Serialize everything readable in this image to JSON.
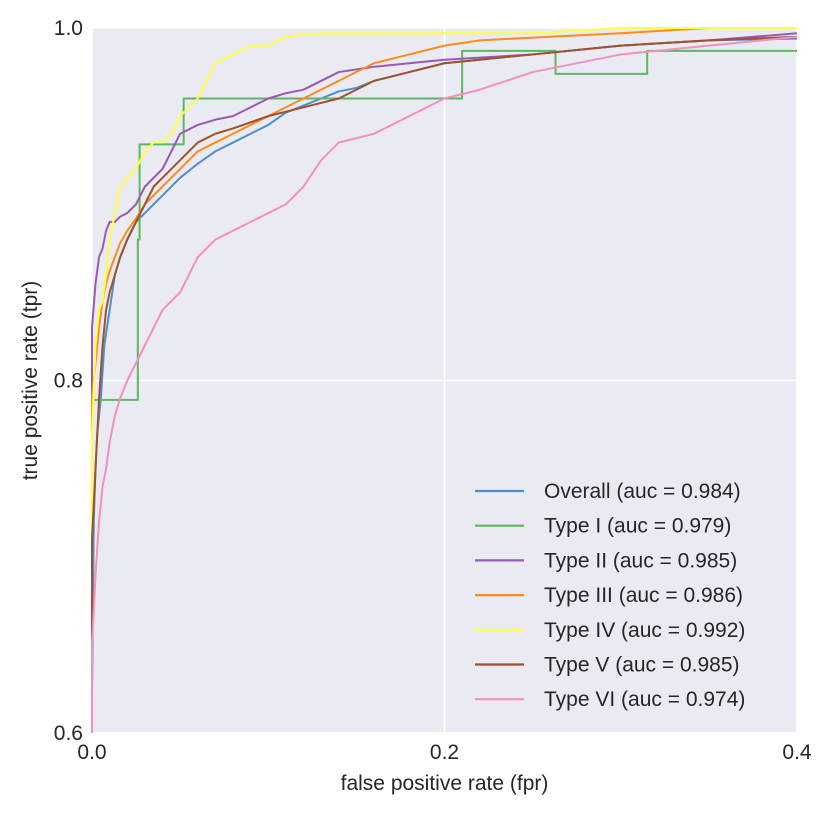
{
  "chart_data": {
    "type": "line",
    "title": "",
    "xlabel": "false positive rate (fpr)",
    "ylabel": "true positive rate (tpr)",
    "xlim": [
      0.0,
      0.4
    ],
    "ylim": [
      0.6,
      1.0
    ],
    "xticks": [
      0.0,
      0.2,
      0.4
    ],
    "xtick_labels": [
      "0.0",
      "0.2",
      "0.4"
    ],
    "yticks": [
      0.6,
      0.8,
      1.0
    ],
    "ytick_labels": [
      "0.6",
      "0.8",
      "1.0"
    ],
    "grid": true,
    "legend_position": "bottom-right",
    "series": [
      {
        "name": "Overall (auc = 0.984)",
        "color": "#4c8fd0",
        "x": [
          0.0,
          0.001,
          0.002,
          0.003,
          0.005,
          0.007,
          0.01,
          0.013,
          0.016,
          0.02,
          0.025,
          0.03,
          0.035,
          0.04,
          0.05,
          0.06,
          0.07,
          0.08,
          0.09,
          0.1,
          0.11,
          0.12,
          0.13,
          0.14,
          0.15,
          0.16,
          0.18,
          0.2,
          0.25,
          0.3,
          0.35,
          0.4
        ],
        "y": [
          0.62,
          0.72,
          0.75,
          0.77,
          0.79,
          0.82,
          0.84,
          0.86,
          0.87,
          0.88,
          0.89,
          0.895,
          0.9,
          0.905,
          0.915,
          0.923,
          0.93,
          0.935,
          0.94,
          0.945,
          0.952,
          0.956,
          0.96,
          0.964,
          0.966,
          0.97,
          0.975,
          0.98,
          0.985,
          0.99,
          0.993,
          0.994
        ]
      },
      {
        "name": "Type I (auc = 0.979)",
        "color": "#5cb85c",
        "x": [
          0.0,
          0.0,
          0.026,
          0.026,
          0.027,
          0.027,
          0.052,
          0.052,
          0.21,
          0.21,
          0.263,
          0.263,
          0.315,
          0.315,
          0.368,
          0.368,
          0.4
        ],
        "y": [
          0.6,
          0.789,
          0.789,
          0.88,
          0.88,
          0.934,
          0.934,
          0.96,
          0.96,
          0.987,
          0.987,
          0.974,
          0.974,
          0.987,
          0.987,
          0.987,
          0.987
        ]
      },
      {
        "name": "Type II (auc = 0.985)",
        "color": "#9b59b6",
        "x": [
          0.0,
          0.0,
          0.002,
          0.004,
          0.006,
          0.008,
          0.01,
          0.013,
          0.016,
          0.02,
          0.025,
          0.03,
          0.04,
          0.05,
          0.06,
          0.07,
          0.08,
          0.1,
          0.11,
          0.12,
          0.14,
          0.16,
          0.18,
          0.2,
          0.25,
          0.3,
          0.35,
          0.4
        ],
        "y": [
          0.6,
          0.83,
          0.855,
          0.87,
          0.875,
          0.885,
          0.89,
          0.89,
          0.893,
          0.895,
          0.9,
          0.91,
          0.92,
          0.94,
          0.945,
          0.948,
          0.95,
          0.96,
          0.963,
          0.965,
          0.975,
          0.978,
          0.98,
          0.982,
          0.985,
          0.99,
          0.993,
          0.997
        ]
      },
      {
        "name": "Type III (auc = 0.986)",
        "color": "#ff8c1a",
        "x": [
          0.0,
          0.0,
          0.002,
          0.004,
          0.006,
          0.008,
          0.01,
          0.013,
          0.016,
          0.02,
          0.025,
          0.03,
          0.04,
          0.05,
          0.06,
          0.07,
          0.08,
          0.1,
          0.12,
          0.14,
          0.16,
          0.18,
          0.2,
          0.22,
          0.26,
          0.3,
          0.35,
          0.4
        ],
        "y": [
          0.6,
          0.79,
          0.81,
          0.83,
          0.845,
          0.855,
          0.862,
          0.87,
          0.878,
          0.885,
          0.892,
          0.9,
          0.91,
          0.92,
          0.93,
          0.935,
          0.94,
          0.95,
          0.96,
          0.97,
          0.98,
          0.985,
          0.99,
          0.993,
          0.995,
          0.997,
          1.0,
          1.0
        ]
      },
      {
        "name": "Type IV (auc = 0.992)",
        "color": "#ffff44",
        "x": [
          0.0,
          0.0,
          0.002,
          0.004,
          0.006,
          0.008,
          0.01,
          0.013,
          0.016,
          0.02,
          0.025,
          0.03,
          0.035,
          0.04,
          0.045,
          0.05,
          0.055,
          0.06,
          0.065,
          0.07,
          0.09,
          0.1,
          0.11,
          0.13,
          0.2,
          0.25,
          0.3,
          0.4
        ],
        "y": [
          0.6,
          0.77,
          0.82,
          0.84,
          0.845,
          0.86,
          0.88,
          0.895,
          0.91,
          0.915,
          0.92,
          0.93,
          0.935,
          0.935,
          0.94,
          0.95,
          0.955,
          0.96,
          0.97,
          0.98,
          0.99,
          0.99,
          0.995,
          0.997,
          0.997,
          0.997,
          1.0,
          1.0
        ]
      },
      {
        "name": "Type V (auc = 0.985)",
        "color": "#a0522d",
        "x": [
          0.0,
          0.0,
          0.002,
          0.004,
          0.006,
          0.008,
          0.01,
          0.013,
          0.016,
          0.02,
          0.025,
          0.03,
          0.035,
          0.04,
          0.05,
          0.06,
          0.07,
          0.08,
          0.1,
          0.12,
          0.14,
          0.16,
          0.18,
          0.2,
          0.25,
          0.3,
          0.35,
          0.4
        ],
        "y": [
          0.6,
          0.71,
          0.75,
          0.79,
          0.82,
          0.84,
          0.85,
          0.86,
          0.87,
          0.88,
          0.89,
          0.9,
          0.91,
          0.915,
          0.925,
          0.935,
          0.94,
          0.943,
          0.95,
          0.955,
          0.96,
          0.97,
          0.975,
          0.98,
          0.985,
          0.99,
          0.993,
          0.995
        ]
      },
      {
        "name": "Type VI (auc = 0.974)",
        "color": "#f48fc1",
        "x": [
          0.0,
          0.0,
          0.002,
          0.004,
          0.006,
          0.008,
          0.01,
          0.013,
          0.016,
          0.02,
          0.025,
          0.03,
          0.035,
          0.04,
          0.045,
          0.05,
          0.055,
          0.06,
          0.07,
          0.08,
          0.09,
          0.1,
          0.11,
          0.12,
          0.13,
          0.14,
          0.16,
          0.18,
          0.2,
          0.22,
          0.25,
          0.3,
          0.35,
          0.4
        ],
        "y": [
          0.6,
          0.65,
          0.69,
          0.72,
          0.74,
          0.75,
          0.765,
          0.78,
          0.79,
          0.8,
          0.81,
          0.82,
          0.83,
          0.84,
          0.845,
          0.85,
          0.86,
          0.87,
          0.88,
          0.885,
          0.89,
          0.895,
          0.9,
          0.91,
          0.925,
          0.935,
          0.94,
          0.95,
          0.96,
          0.965,
          0.975,
          0.985,
          0.99,
          0.995
        ]
      }
    ]
  }
}
